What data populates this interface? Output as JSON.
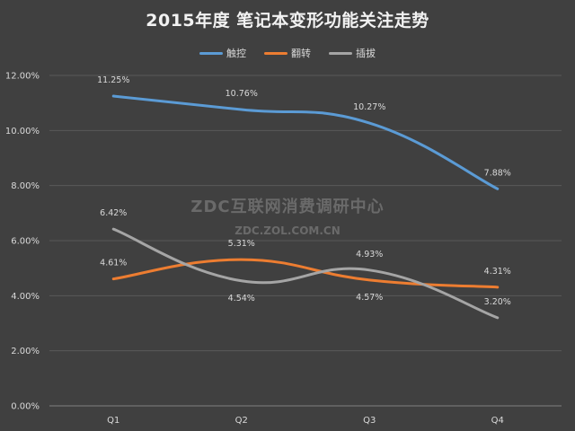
{
  "chart_data": {
    "type": "line",
    "title": "2015年度 笔记本变形功能关注走势",
    "categories": [
      "Q1",
      "Q2",
      "Q3",
      "Q4"
    ],
    "series": [
      {
        "name": "触控",
        "color": "#5b9bd5",
        "values": [
          11.25,
          10.76,
          10.27,
          7.88
        ],
        "labels": [
          "11.25%",
          "10.76%",
          "10.27%",
          "7.88%"
        ]
      },
      {
        "name": "翻转",
        "color": "#ed7d31",
        "values": [
          4.61,
          5.31,
          4.57,
          4.31
        ],
        "labels": [
          "4.61%",
          "5.31%",
          "4.57%",
          "4.31%"
        ]
      },
      {
        "name": "插拔",
        "color": "#a5a5a5",
        "values": [
          6.42,
          4.54,
          4.93,
          3.2
        ],
        "labels": [
          "6.42%",
          "4.54%",
          "4.93%",
          "3.20%"
        ]
      }
    ],
    "y_ticks": [
      0,
      2,
      4,
      6,
      8,
      10,
      12
    ],
    "y_tick_labels": [
      "0.00%",
      "2.00%",
      "4.00%",
      "6.00%",
      "8.00%",
      "10.00%",
      "12.00%"
    ],
    "ylim": [
      0,
      12
    ],
    "xlabel": "",
    "ylabel": "",
    "grid": true,
    "legend_position": "top"
  },
  "watermark": {
    "main": "ZDC互联网消费调研中心",
    "sub": "ZDC.ZOL.COM.CN"
  }
}
